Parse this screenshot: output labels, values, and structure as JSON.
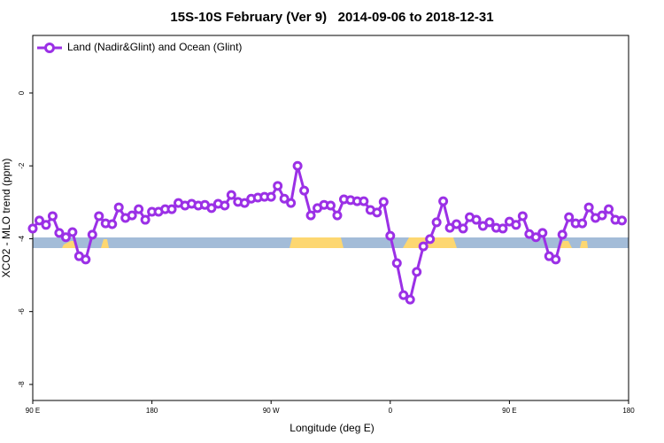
{
  "chart_data": {
    "type": "line",
    "title": "15S-10S February (Ver 9)   2014-09-06 to 2018-12-31",
    "x_label": "Longitude (deg E)",
    "y_label": "XCO2 - MLO trend (ppm)",
    "xlim": [
      90,
      540
    ],
    "xticks": [
      {
        "value": 90,
        "label": "90 E"
      },
      180,
      {
        "value": 270,
        "label": "90 W"
      },
      {
        "value": 360,
        "label": "0"
      },
      {
        "value": 450,
        "label": "90 E"
      },
      {
        "value": 540,
        "label": "180"
      }
    ],
    "ylim": [
      -8.44,
      1.58
    ],
    "yticks": [
      0,
      -2,
      -4,
      -6,
      -8
    ],
    "legend": "top-left",
    "x": [
      90,
      95,
      100,
      105,
      110,
      115,
      120,
      125,
      130,
      135,
      140,
      145,
      150,
      155,
      160,
      165,
      170,
      175,
      180,
      185,
      190,
      195,
      200,
      205,
      210,
      215,
      220,
      225,
      230,
      235,
      240,
      245,
      250,
      255,
      260,
      265,
      270,
      275,
      280,
      285,
      290,
      295,
      300,
      305,
      310,
      315,
      320,
      325,
      330,
      335,
      340,
      345,
      350,
      355,
      360,
      365,
      370,
      375,
      380,
      385,
      390,
      395,
      400,
      405,
      410,
      415,
      420,
      425,
      430,
      435,
      440,
      445,
      450,
      455,
      460,
      465,
      470,
      475,
      480,
      485,
      490,
      495,
      500,
      505,
      510,
      515,
      520,
      525,
      530,
      535
    ],
    "series": [
      {
        "name": "Land (Nadir&Glint) and Ocean (Glint)",
        "color": "#9b30e6",
        "values": [
          -3.72,
          -3.5,
          -3.62,
          -3.38,
          -3.84,
          -3.96,
          -3.82,
          -4.48,
          -4.57,
          -3.89,
          -3.38,
          -3.58,
          -3.6,
          -3.14,
          -3.43,
          -3.36,
          -3.19,
          -3.48,
          -3.26,
          -3.26,
          -3.19,
          -3.19,
          -3.02,
          -3.09,
          -3.04,
          -3.09,
          -3.07,
          -3.16,
          -3.04,
          -3.09,
          -2.8,
          -2.99,
          -3.02,
          -2.9,
          -2.87,
          -2.85,
          -2.85,
          -2.55,
          -2.9,
          -3.02,
          -2.0,
          -2.68,
          -3.36,
          -3.16,
          -3.07,
          -3.09,
          -3.36,
          -2.92,
          -2.94,
          -2.97,
          -2.97,
          -3.21,
          -3.28,
          -2.99,
          -3.92,
          -4.67,
          -5.55,
          -5.67,
          -4.91,
          -4.21,
          -4.01,
          -3.55,
          -2.97,
          -3.7,
          -3.6,
          -3.72,
          -3.41,
          -3.48,
          -3.65,
          -3.55,
          -3.7,
          -3.72,
          -3.53,
          -3.62,
          -3.38,
          -3.87,
          -3.96,
          -3.84,
          -4.48,
          -4.57,
          -3.89,
          -3.41,
          -3.58,
          -3.58,
          -3.14,
          -3.43,
          -3.36,
          -3.19,
          -3.48,
          -3.5
        ]
      }
    ]
  }
}
